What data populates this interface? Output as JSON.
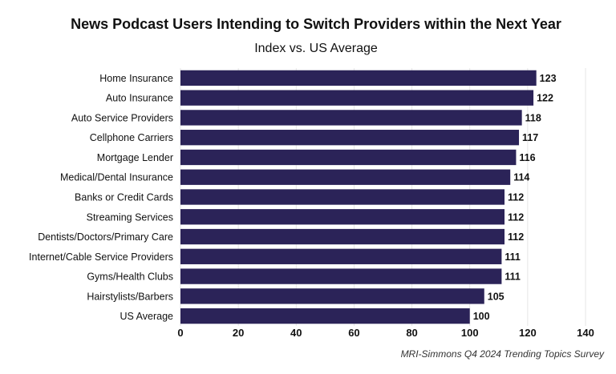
{
  "chart_data": {
    "type": "bar",
    "orientation": "horizontal",
    "title": "News Podcast Users Intending to Switch Providers within the Next Year",
    "subtitle": "Index vs. US Average",
    "source": "MRI-Simmons Q4 2024 Trending Topics Survey",
    "categories": [
      "Home Insurance",
      "Auto Insurance",
      "Auto Service Providers",
      "Cellphone Carriers",
      "Mortgage Lender",
      "Medical/Dental Insurance",
      "Banks or Credit Cards",
      "Streaming Services",
      "Dentists/Doctors/Primary Care",
      "Internet/Cable Service Providers",
      "Gyms/Health Clubs",
      "Hairstylists/Barbers",
      "US Average"
    ],
    "values": [
      123,
      122,
      118,
      117,
      116,
      114,
      112,
      112,
      112,
      111,
      111,
      105,
      100
    ],
    "xlim": [
      0,
      140
    ],
    "xticks": [
      0,
      20,
      40,
      60,
      80,
      100,
      120,
      140
    ],
    "grid": true,
    "legend": "none",
    "bar_color": "#2b2358",
    "gridline_color": "#e6e6e6"
  }
}
